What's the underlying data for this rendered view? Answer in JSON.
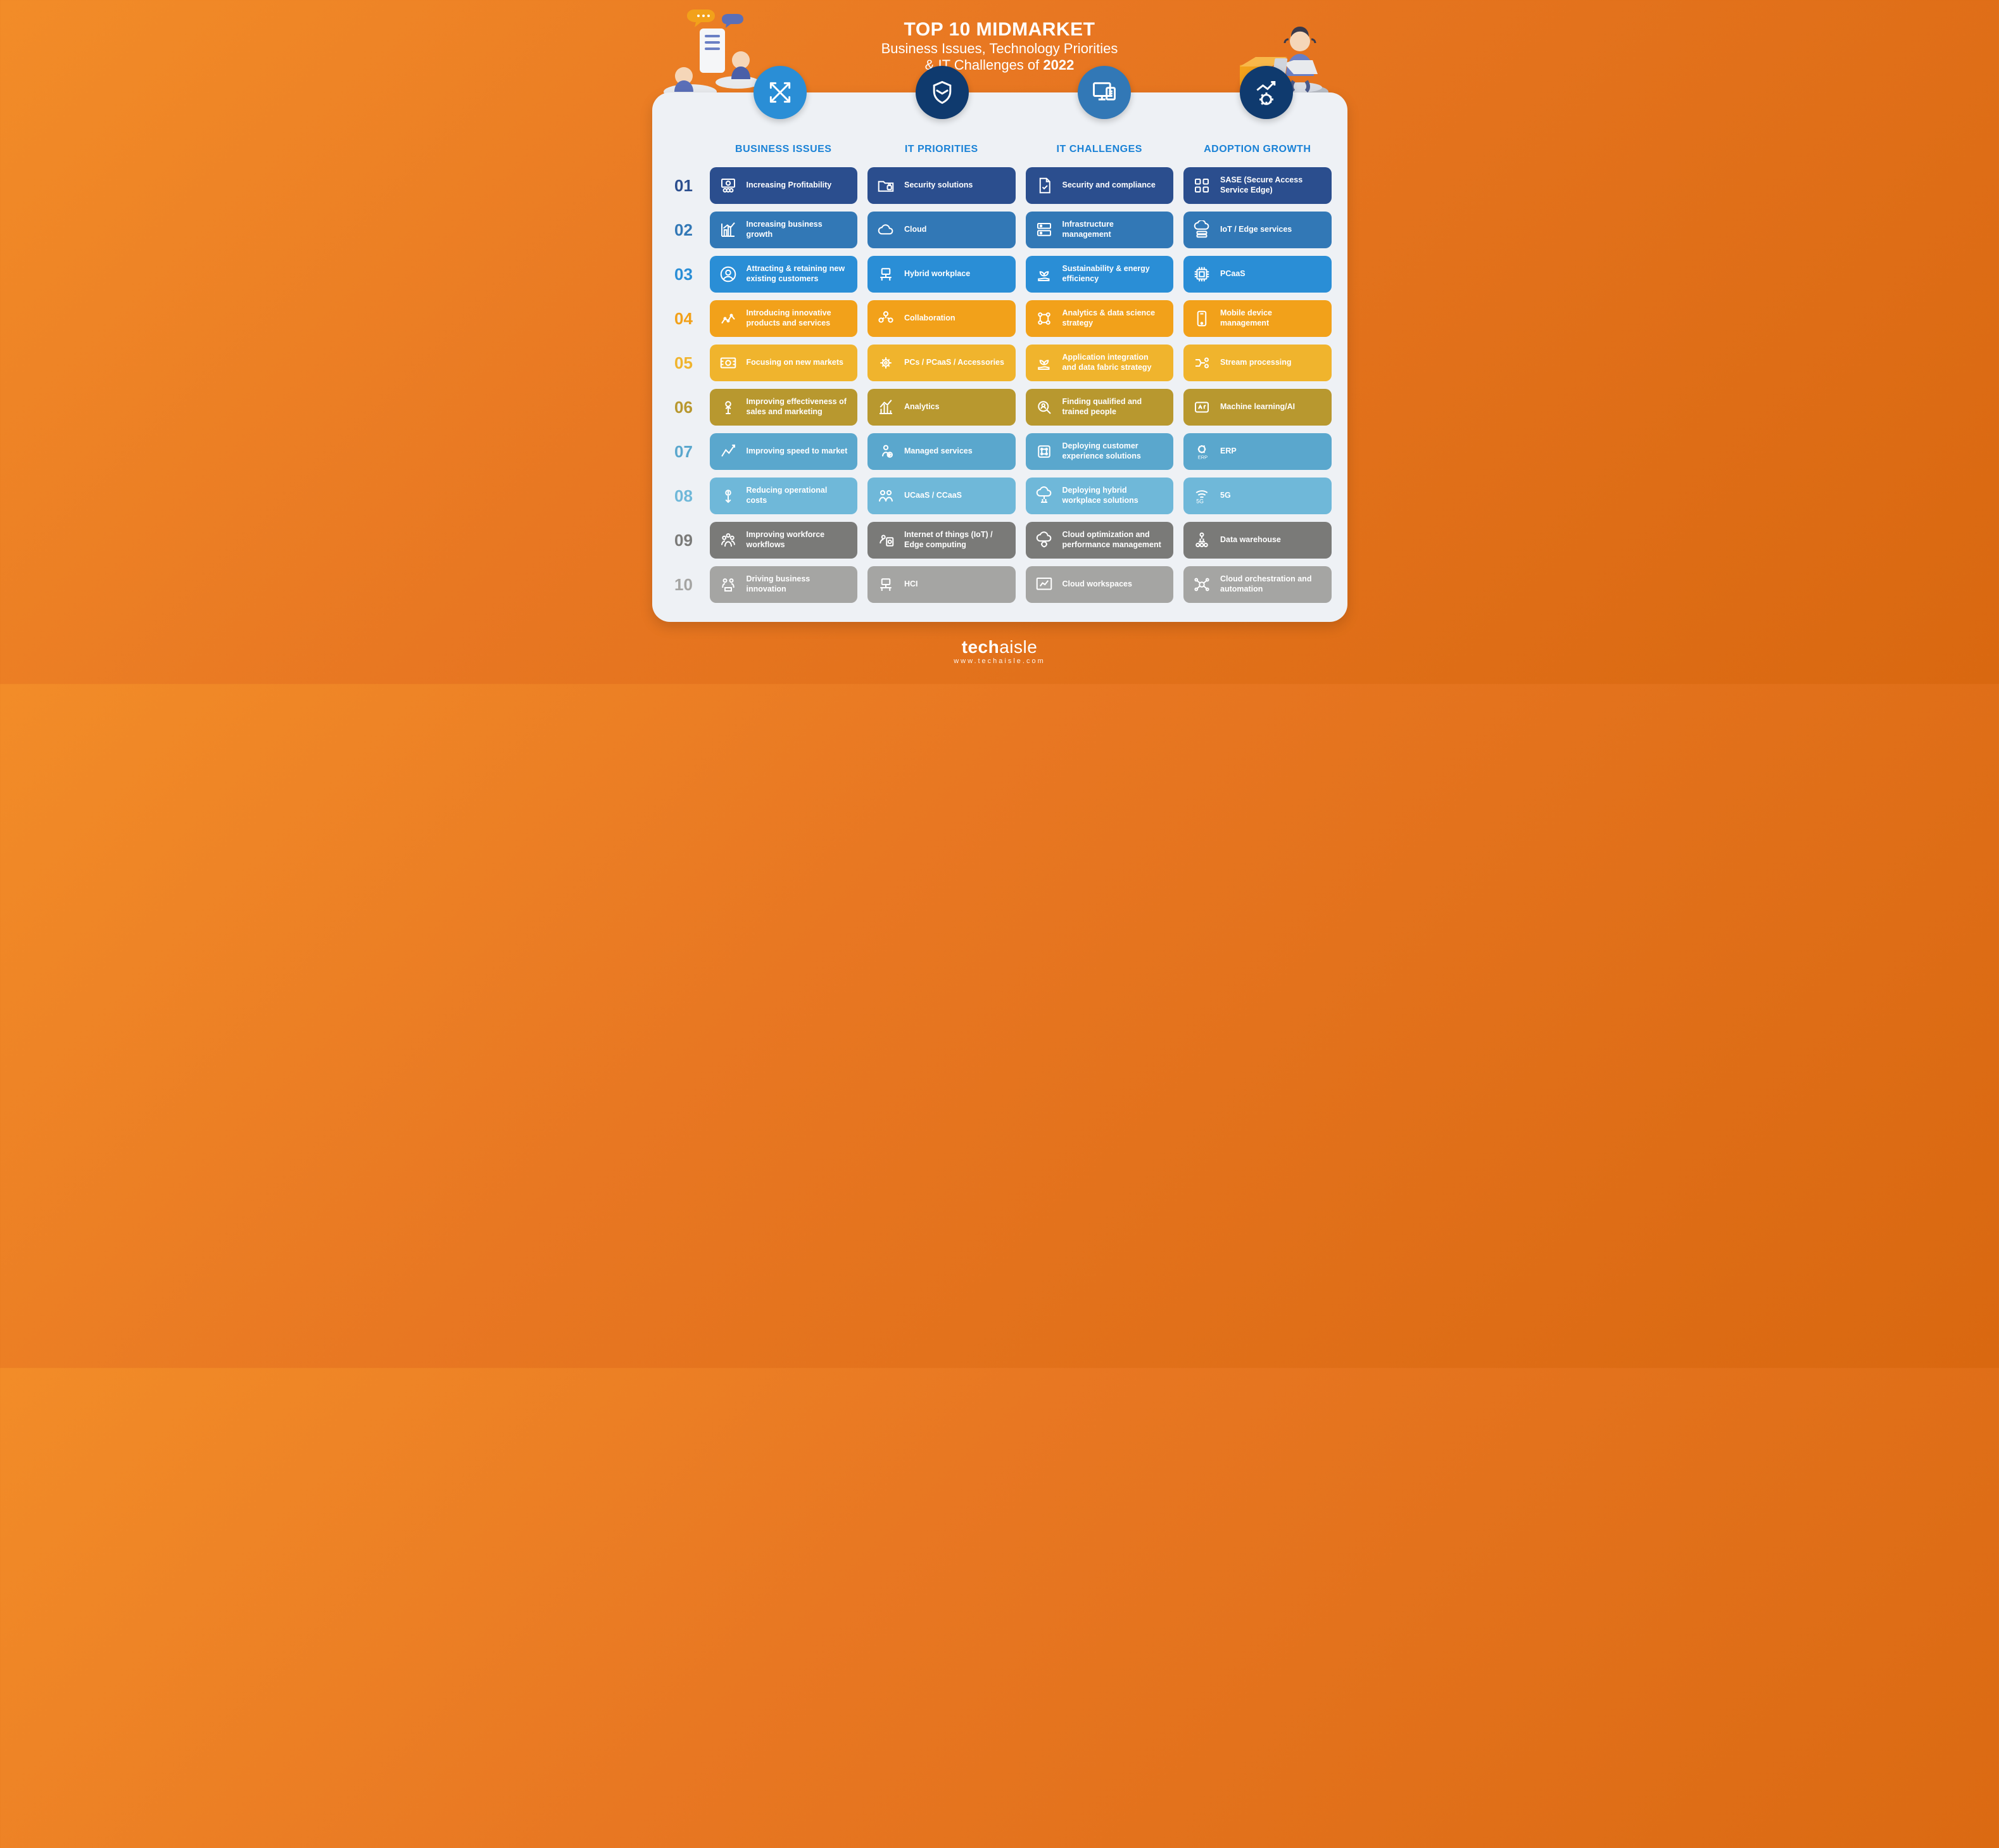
{
  "title": {
    "line1": "TOP 10 MIDMARKET",
    "line2": "Business Issues, Technology Priorities",
    "line3_prefix": "& IT Challenges of ",
    "year": "2022"
  },
  "brand": {
    "name_left": "tech",
    "name_right": "aisle",
    "url": "www.techaisle.com"
  },
  "colors": {
    "row_colors": [
      "#2b4e8e",
      "#3278b6",
      "#2a8ed6",
      "#f2a11a",
      "#f0b42d",
      "#b8982f",
      "#5aa7cd",
      "#6fb8d9",
      "#7a7a78",
      "#a5a5a3"
    ],
    "num_text_colors": [
      "#2b4e8e",
      "#3278b6",
      "#2a8ed6",
      "#f2a11a",
      "#f0b42d",
      "#b8982f",
      "#5aa7cd",
      "#6fb8d9",
      "#7a7a78",
      "#a5a5a3"
    ],
    "badge_colors": [
      "#2a8ed6",
      "#0f3a6e",
      "#3278b6",
      "#0f3a6e"
    ]
  },
  "numbers": [
    "01",
    "02",
    "03",
    "04",
    "05",
    "06",
    "07",
    "08",
    "09",
    "10"
  ],
  "categories": [
    {
      "header": "BUSINESS ISSUES",
      "badge_icon": "arrows-cross",
      "items": [
        {
          "icon": "profit",
          "text": "Increasing Profitability"
        },
        {
          "icon": "growth-chart",
          "text": "Increasing business growth"
        },
        {
          "icon": "customer",
          "text": "Attracting & retaining new existing customers"
        },
        {
          "icon": "innovate",
          "text": "Introducing innovative products and services"
        },
        {
          "icon": "market",
          "text": "Focusing on new markets"
        },
        {
          "icon": "sales",
          "text": "Improving effectiveness of sales and marketing"
        },
        {
          "icon": "speed",
          "text": "Improving speed to market"
        },
        {
          "icon": "cost",
          "text": "Reducing operational costs"
        },
        {
          "icon": "workforce",
          "text": "Improving workforce workflows"
        },
        {
          "icon": "innovation",
          "text": "Driving business innovation"
        }
      ]
    },
    {
      "header": "IT PRIORITIES",
      "badge_icon": "shield-mail",
      "items": [
        {
          "icon": "folder-lock",
          "text": "Security solutions"
        },
        {
          "icon": "cloud",
          "text": "Cloud"
        },
        {
          "icon": "desk",
          "text": "Hybrid workplace"
        },
        {
          "icon": "team",
          "text": "Collaboration"
        },
        {
          "icon": "gear",
          "text": "PCs / PCaaS / Accessories"
        },
        {
          "icon": "analytics",
          "text": "Analytics"
        },
        {
          "icon": "managed",
          "text": "Managed services"
        },
        {
          "icon": "people",
          "text": "UCaaS / CCaaS"
        },
        {
          "icon": "iot",
          "text": "Internet of things (IoT) / Edge computing"
        },
        {
          "icon": "desk",
          "text": "HCI"
        }
      ]
    },
    {
      "header": "IT CHALLENGES",
      "badge_icon": "screen-doc",
      "items": [
        {
          "icon": "doc-check",
          "text": "Security and compliance"
        },
        {
          "icon": "server",
          "text": "Infrastructure management"
        },
        {
          "icon": "hand-leaf",
          "text": "Sustainability & energy efficiency"
        },
        {
          "icon": "data-strategy",
          "text": "Analytics & data science strategy"
        },
        {
          "icon": "hand-leaf",
          "text": "Application integration and data fabric strategy"
        },
        {
          "icon": "search-person",
          "text": "Finding qualified and trained people"
        },
        {
          "icon": "deploy",
          "text": "Deploying customer experience solutions"
        },
        {
          "icon": "cloud-net",
          "text": "Deploying hybrid workplace solutions"
        },
        {
          "icon": "cloud-gear",
          "text": "Cloud optimization and performance management"
        },
        {
          "icon": "chart-box",
          "text": "Cloud workspaces"
        }
      ]
    },
    {
      "header": "ADOPTION GROWTH",
      "badge_icon": "growth-gear",
      "items": [
        {
          "icon": "grid",
          "text": "SASE (Secure Access Service Edge)"
        },
        {
          "icon": "cloud-stack",
          "text": "IoT / Edge services"
        },
        {
          "icon": "chip",
          "text": "PCaaS"
        },
        {
          "icon": "phone",
          "text": "Mobile device management"
        },
        {
          "icon": "stream",
          "text": "Stream processing"
        },
        {
          "icon": "ai",
          "text": "Machine learning/AI"
        },
        {
          "icon": "erp-gear",
          "text": "ERP"
        },
        {
          "icon": "fiveg",
          "text": "5G"
        },
        {
          "icon": "warehouse",
          "text": "Data warehouse"
        },
        {
          "icon": "orchestrate",
          "text": "Cloud orchestration and automation"
        }
      ]
    }
  ]
}
